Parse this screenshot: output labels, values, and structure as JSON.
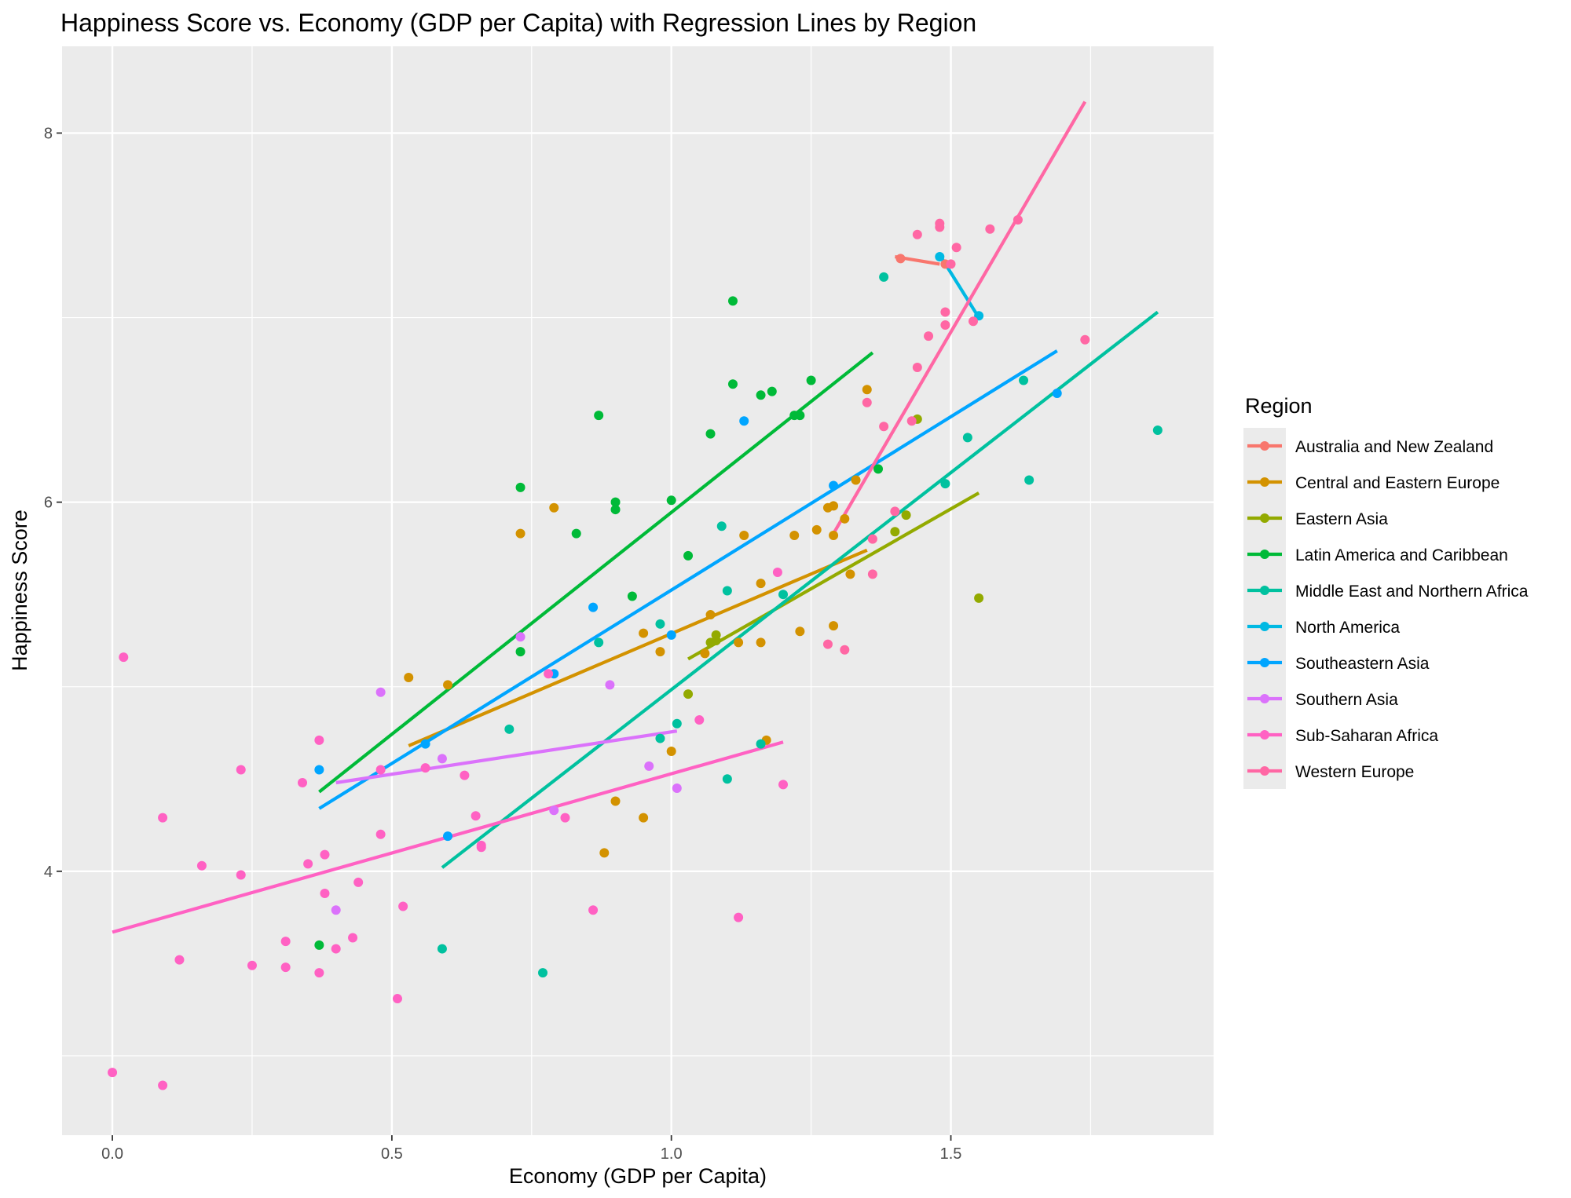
{
  "chart_data": {
    "type": "scatter",
    "title": "Happiness Score vs. Economy (GDP per Capita) with Regression Lines by Region",
    "xlabel": "Economy (GDP per Capita)",
    "ylabel": "Happiness Score",
    "xlim": [
      -0.09,
      1.97
    ],
    "ylim": [
      2.57,
      8.47
    ],
    "x_ticks": [
      0.0,
      0.5,
      1.0,
      1.5
    ],
    "x_tick_labels": [
      "0.0",
      "0.5",
      "1.0",
      "1.5"
    ],
    "y_ticks": [
      4,
      6,
      8
    ],
    "y_tick_labels": [
      "4",
      "6",
      "8"
    ],
    "grid": true,
    "legend_position": "right",
    "legend_title": "Region",
    "series": [
      {
        "name": "Australia and New Zealand",
        "color": "#F8766D",
        "points": [
          [
            1.41,
            7.32
          ],
          [
            1.49,
            7.29
          ]
        ],
        "line": [
          [
            1.4,
            7.33
          ],
          [
            1.48,
            7.29
          ]
        ]
      },
      {
        "name": "Central and Eastern Europe",
        "color": "#D39200",
        "points": [
          [
            0.53,
            5.05
          ],
          [
            0.6,
            5.01
          ],
          [
            0.73,
            5.83
          ],
          [
            0.79,
            5.97
          ],
          [
            0.88,
            4.1
          ],
          [
            0.9,
            4.38
          ],
          [
            0.95,
            4.29
          ],
          [
            0.95,
            5.29
          ],
          [
            0.98,
            5.19
          ],
          [
            1.0,
            4.65
          ],
          [
            1.06,
            5.18
          ],
          [
            1.07,
            5.39
          ],
          [
            1.12,
            5.24
          ],
          [
            1.13,
            5.82
          ],
          [
            1.16,
            5.56
          ],
          [
            1.16,
            5.24
          ],
          [
            1.17,
            4.71
          ],
          [
            1.22,
            5.82
          ],
          [
            1.23,
            5.3
          ],
          [
            1.26,
            5.85
          ],
          [
            1.28,
            5.97
          ],
          [
            1.29,
            5.98
          ],
          [
            1.29,
            5.82
          ],
          [
            1.29,
            5.33
          ],
          [
            1.31,
            5.91
          ],
          [
            1.32,
            5.61
          ],
          [
            1.33,
            6.12
          ],
          [
            1.35,
            6.61
          ]
        ],
        "line": [
          [
            0.53,
            4.68
          ],
          [
            1.35,
            5.74
          ]
        ]
      },
      {
        "name": "Eastern Asia",
        "color": "#93AA00",
        "points": [
          [
            1.03,
            4.96
          ],
          [
            1.07,
            5.24
          ],
          [
            1.08,
            5.25
          ],
          [
            1.08,
            5.28
          ],
          [
            1.4,
            5.84
          ],
          [
            1.42,
            5.93
          ],
          [
            1.44,
            6.45
          ],
          [
            1.55,
            5.48
          ]
        ],
        "line": [
          [
            1.03,
            5.15
          ],
          [
            1.55,
            6.05
          ]
        ]
      },
      {
        "name": "Latin America and Caribbean",
        "color": "#00BA38",
        "points": [
          [
            0.37,
            3.6
          ],
          [
            0.73,
            5.19
          ],
          [
            0.73,
            6.08
          ],
          [
            0.83,
            5.83
          ],
          [
            0.87,
            6.47
          ],
          [
            0.9,
            5.96
          ],
          [
            0.9,
            6.0
          ],
          [
            0.93,
            5.49
          ],
          [
            1.0,
            6.01
          ],
          [
            1.03,
            5.71
          ],
          [
            1.07,
            6.37
          ],
          [
            1.11,
            6.64
          ],
          [
            1.11,
            7.09
          ],
          [
            1.16,
            6.58
          ],
          [
            1.18,
            6.6
          ],
          [
            1.22,
            6.47
          ],
          [
            1.23,
            6.47
          ],
          [
            1.25,
            6.66
          ],
          [
            1.37,
            6.18
          ]
        ],
        "line": [
          [
            0.37,
            4.43
          ],
          [
            1.36,
            6.81
          ]
        ]
      },
      {
        "name": "Middle East and Northern Africa",
        "color": "#00C19F",
        "points": [
          [
            0.59,
            3.58
          ],
          [
            0.71,
            4.77
          ],
          [
            0.77,
            3.45
          ],
          [
            0.87,
            5.24
          ],
          [
            0.98,
            4.72
          ],
          [
            0.98,
            5.34
          ],
          [
            1.01,
            4.8
          ],
          [
            1.09,
            5.87
          ],
          [
            1.1,
            4.5
          ],
          [
            1.1,
            5.52
          ],
          [
            1.16,
            4.69
          ],
          [
            1.2,
            5.5
          ],
          [
            1.38,
            7.22
          ],
          [
            1.49,
            6.1
          ],
          [
            1.53,
            6.35
          ],
          [
            1.63,
            6.66
          ],
          [
            1.64,
            6.12
          ],
          [
            1.87,
            6.39
          ]
        ],
        "line": [
          [
            0.59,
            4.02
          ],
          [
            1.87,
            7.03
          ]
        ]
      },
      {
        "name": "North America",
        "color": "#00B9E3",
        "points": [
          [
            1.48,
            7.33
          ],
          [
            1.55,
            7.01
          ]
        ],
        "line": [
          [
            1.48,
            7.34
          ],
          [
            1.55,
            7.0
          ]
        ]
      },
      {
        "name": "Southeastern Asia",
        "color": "#00A5FF",
        "points": [
          [
            0.37,
            4.55
          ],
          [
            0.6,
            4.19
          ],
          [
            0.56,
            4.69
          ],
          [
            0.79,
            5.07
          ],
          [
            0.86,
            5.43
          ],
          [
            1.0,
            5.28
          ],
          [
            1.13,
            6.44
          ],
          [
            1.29,
            6.09
          ],
          [
            1.69,
            6.59
          ]
        ],
        "line": [
          [
            0.37,
            4.34
          ],
          [
            1.69,
            6.82
          ]
        ]
      },
      {
        "name": "Southern Asia",
        "color": "#DB72FB",
        "points": [
          [
            0.4,
            3.79
          ],
          [
            0.48,
            4.97
          ],
          [
            0.59,
            4.61
          ],
          [
            0.73,
            5.27
          ],
          [
            0.79,
            4.33
          ],
          [
            0.89,
            5.01
          ],
          [
            0.96,
            4.57
          ],
          [
            1.01,
            4.45
          ]
        ],
        "line": [
          [
            0.4,
            4.48
          ],
          [
            1.01,
            4.76
          ]
        ]
      },
      {
        "name": "Sub-Saharan Africa",
        "color": "#FF61C3",
        "points": [
          [
            0.0,
            2.91
          ],
          [
            0.02,
            5.16
          ],
          [
            0.09,
            2.84
          ],
          [
            0.09,
            4.29
          ],
          [
            0.12,
            3.52
          ],
          [
            0.16,
            4.03
          ],
          [
            0.23,
            3.98
          ],
          [
            0.23,
            4.55
          ],
          [
            0.25,
            3.49
          ],
          [
            0.31,
            3.62
          ],
          [
            0.31,
            3.48
          ],
          [
            0.34,
            4.48
          ],
          [
            0.35,
            4.04
          ],
          [
            0.37,
            4.71
          ],
          [
            0.37,
            3.45
          ],
          [
            0.38,
            3.88
          ],
          [
            0.38,
            4.09
          ],
          [
            0.4,
            3.58
          ],
          [
            0.43,
            3.64
          ],
          [
            0.44,
            3.94
          ],
          [
            0.48,
            4.55
          ],
          [
            0.48,
            4.2
          ],
          [
            0.51,
            3.31
          ],
          [
            0.52,
            3.81
          ],
          [
            0.56,
            4.56
          ],
          [
            0.63,
            4.52
          ],
          [
            0.65,
            4.3
          ],
          [
            0.66,
            4.13
          ],
          [
            0.66,
            4.14
          ],
          [
            0.78,
            5.07
          ],
          [
            0.81,
            4.29
          ],
          [
            0.86,
            3.79
          ],
          [
            1.05,
            4.82
          ],
          [
            1.12,
            3.75
          ],
          [
            1.19,
            5.62
          ],
          [
            1.2,
            4.47
          ]
        ],
        "line": [
          [
            0.0,
            3.67
          ],
          [
            1.2,
            4.7
          ]
        ]
      },
      {
        "name": "Western Europe",
        "color": "#FF67A4",
        "points": [
          [
            1.28,
            5.23
          ],
          [
            1.31,
            5.2
          ],
          [
            1.35,
            6.54
          ],
          [
            1.36,
            5.8
          ],
          [
            1.36,
            5.61
          ],
          [
            1.38,
            6.41
          ],
          [
            1.4,
            5.95
          ],
          [
            1.43,
            6.44
          ],
          [
            1.44,
            6.73
          ],
          [
            1.44,
            7.45
          ],
          [
            1.46,
            6.9
          ],
          [
            1.48,
            7.49
          ],
          [
            1.48,
            7.51
          ],
          [
            1.49,
            7.03
          ],
          [
            1.49,
            6.96
          ],
          [
            1.5,
            7.29
          ],
          [
            1.51,
            7.38
          ],
          [
            1.54,
            6.98
          ],
          [
            1.57,
            7.48
          ],
          [
            1.62,
            7.53
          ],
          [
            1.74,
            6.88
          ]
        ],
        "line": [
          [
            1.29,
            5.83
          ],
          [
            1.74,
            8.17
          ]
        ]
      }
    ]
  }
}
